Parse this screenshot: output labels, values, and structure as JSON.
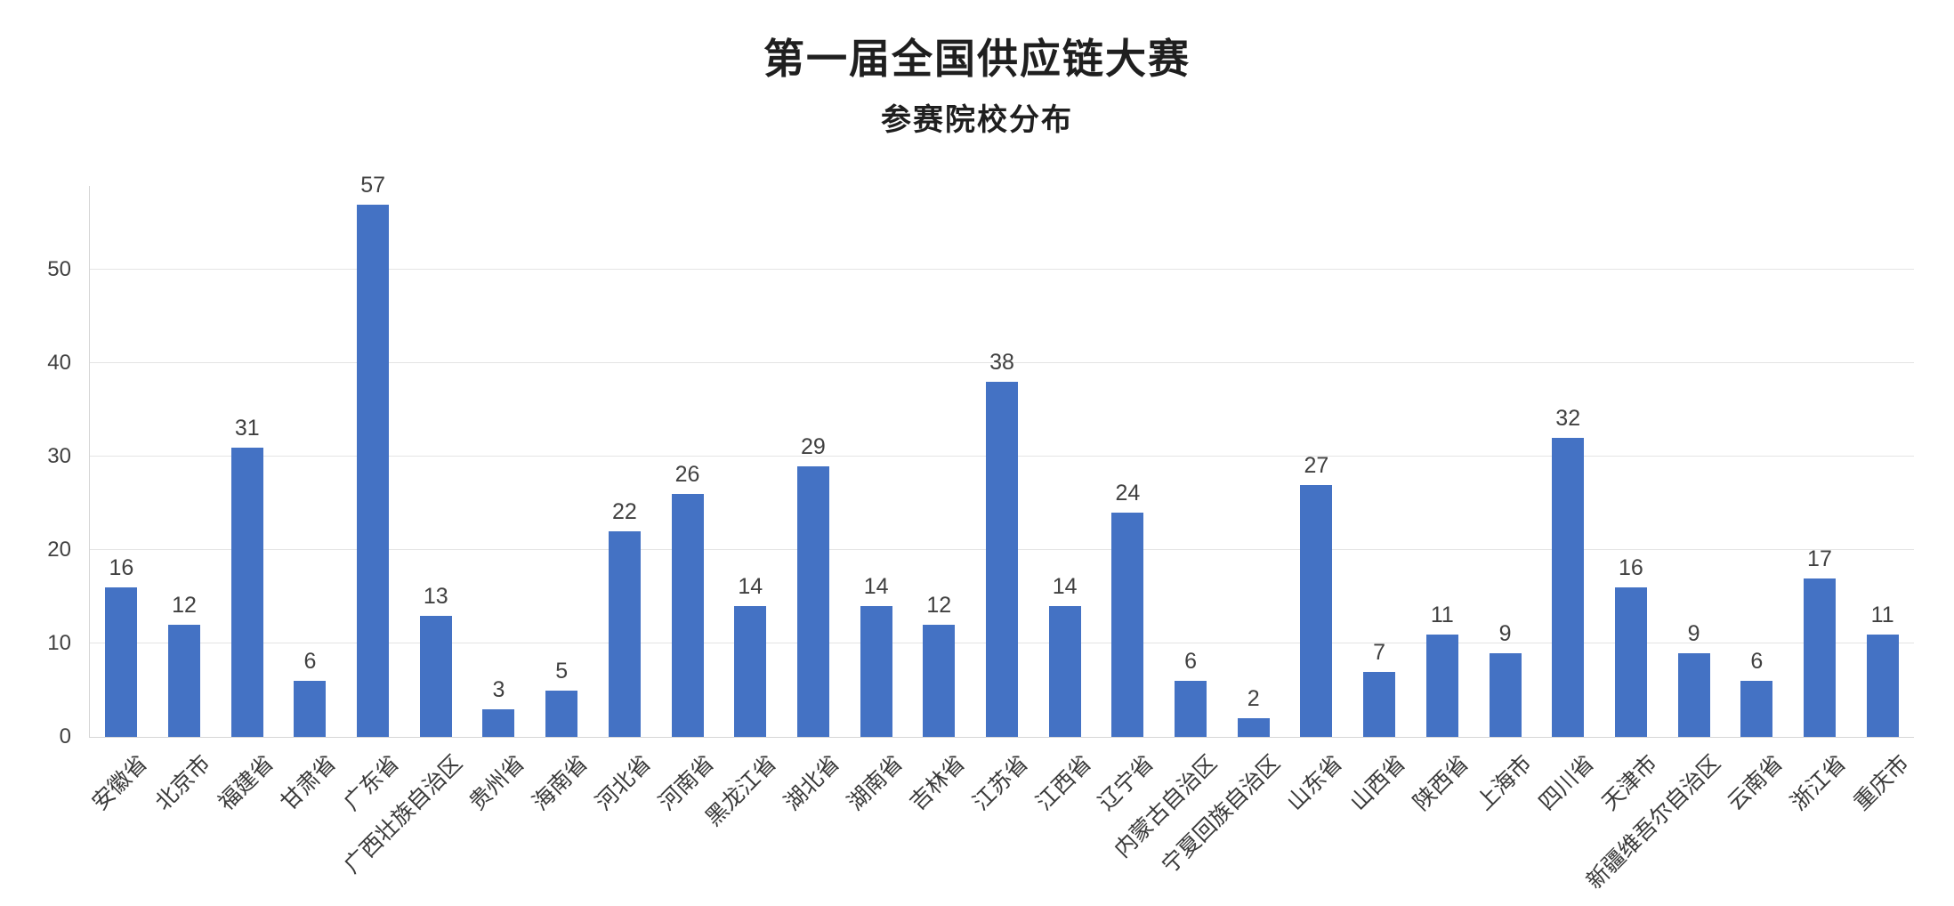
{
  "chart_data": {
    "type": "bar",
    "title": "第一届全国供应链大赛",
    "subtitle": "参赛院校分布",
    "categories": [
      "安徽省",
      "北京市",
      "福建省",
      "甘肃省",
      "广东省",
      "广西壮族自治区",
      "贵州省",
      "海南省",
      "河北省",
      "河南省",
      "黑龙江省",
      "湖北省",
      "湖南省",
      "吉林省",
      "江苏省",
      "江西省",
      "辽宁省",
      "内蒙古自治区",
      "宁夏回族自治区",
      "山东省",
      "山西省",
      "陕西省",
      "上海市",
      "四川省",
      "天津市",
      "新疆维吾尔自治区",
      "云南省",
      "浙江省",
      "重庆市"
    ],
    "values": [
      16,
      12,
      31,
      6,
      57,
      13,
      3,
      5,
      22,
      26,
      14,
      29,
      14,
      12,
      38,
      14,
      24,
      6,
      2,
      27,
      7,
      11,
      9,
      32,
      16,
      9,
      6,
      17,
      11
    ],
    "xlabel": "",
    "ylabel": "",
    "y_ticks": [
      0,
      10,
      20,
      30,
      40,
      50
    ],
    "ylim": [
      0,
      59
    ],
    "grid": true,
    "legend_position": "none",
    "value_labels_shown": true,
    "x_label_rotation_deg": -45,
    "colors": {
      "bar": "#4472C4",
      "grid_line": "#e4e4e4",
      "axis_line": "#d6d6d6",
      "tick_label": "#404040",
      "value_label": "#404040",
      "title": "#1f1f1f"
    }
  }
}
